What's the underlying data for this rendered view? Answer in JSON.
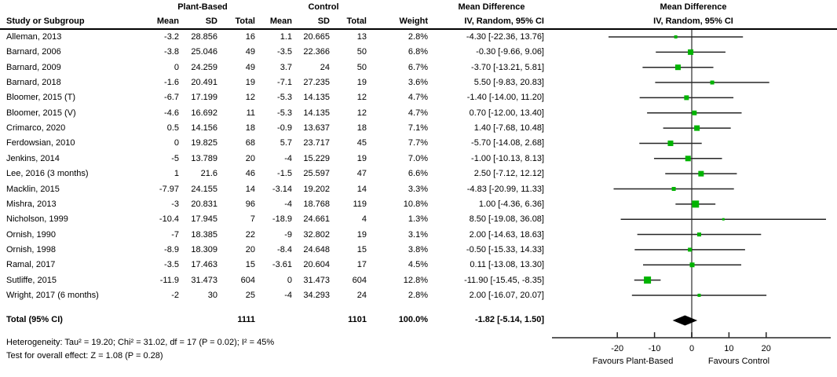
{
  "header": {
    "group1": "Plant-Based",
    "group2": "Control",
    "md_table": "Mean Difference",
    "md_plot": "Mean Difference",
    "iv_table": "IV, Random, 95% CI",
    "iv_plot": "IV, Random, 95% CI",
    "study": "Study or Subgroup",
    "mean": "Mean",
    "sd": "SD",
    "total": "Total",
    "weight": "Weight"
  },
  "chart_data": {
    "type": "forest",
    "title": "Mean Difference, IV, Random, 95% CI",
    "studies": [
      {
        "name": "Alleman, 2013",
        "pb_mean": "-3.2",
        "pb_sd": "28.856",
        "pb_total": "16",
        "c_mean": "1.1",
        "c_sd": "20.665",
        "c_total": "13",
        "weight": "2.8%",
        "ci_text": "-4.30 [-22.36, 13.76]",
        "md": -4.3,
        "lo": -22.36,
        "hi": 13.76,
        "w": 2.8
      },
      {
        "name": "Barnard, 2006",
        "pb_mean": "-3.8",
        "pb_sd": "25.046",
        "pb_total": "49",
        "c_mean": "-3.5",
        "c_sd": "22.366",
        "c_total": "50",
        "weight": "6.8%",
        "ci_text": "-0.30 [-9.66, 9.06]",
        "md": -0.3,
        "lo": -9.66,
        "hi": 9.06,
        "w": 6.8
      },
      {
        "name": "Barnard, 2009",
        "pb_mean": "0",
        "pb_sd": "24.259",
        "pb_total": "49",
        "c_mean": "3.7",
        "c_sd": "24",
        "c_total": "50",
        "weight": "6.7%",
        "ci_text": "-3.70 [-13.21, 5.81]",
        "md": -3.7,
        "lo": -13.21,
        "hi": 5.81,
        "w": 6.7
      },
      {
        "name": "Barnard, 2018",
        "pb_mean": "-1.6",
        "pb_sd": "20.491",
        "pb_total": "19",
        "c_mean": "-7.1",
        "c_sd": "27.235",
        "c_total": "19",
        "weight": "3.6%",
        "ci_text": "5.50 [-9.83, 20.83]",
        "md": 5.5,
        "lo": -9.83,
        "hi": 20.83,
        "w": 3.6
      },
      {
        "name": "Bloomer, 2015 (T)",
        "pb_mean": "-6.7",
        "pb_sd": "17.199",
        "pb_total": "12",
        "c_mean": "-5.3",
        "c_sd": "14.135",
        "c_total": "12",
        "weight": "4.7%",
        "ci_text": "-1.40 [-14.00, 11.20]",
        "md": -1.4,
        "lo": -14.0,
        "hi": 11.2,
        "w": 4.7
      },
      {
        "name": "Bloomer, 2015 (V)",
        "pb_mean": "-4.6",
        "pb_sd": "16.692",
        "pb_total": "11",
        "c_mean": "-5.3",
        "c_sd": "14.135",
        "c_total": "12",
        "weight": "4.7%",
        "ci_text": "0.70 [-12.00, 13.40]",
        "md": 0.7,
        "lo": -12.0,
        "hi": 13.4,
        "w": 4.7
      },
      {
        "name": "Crimarco, 2020",
        "pb_mean": "0.5",
        "pb_sd": "14.156",
        "pb_total": "18",
        "c_mean": "-0.9",
        "c_sd": "13.637",
        "c_total": "18",
        "weight": "7.1%",
        "ci_text": "1.40 [-7.68, 10.48]",
        "md": 1.4,
        "lo": -7.68,
        "hi": 10.48,
        "w": 7.1
      },
      {
        "name": "Ferdowsian, 2010",
        "pb_mean": "0",
        "pb_sd": "19.825",
        "pb_total": "68",
        "c_mean": "5.7",
        "c_sd": "23.717",
        "c_total": "45",
        "weight": "7.7%",
        "ci_text": "-5.70 [-14.08, 2.68]",
        "md": -5.7,
        "lo": -14.08,
        "hi": 2.68,
        "w": 7.7
      },
      {
        "name": "Jenkins, 2014",
        "pb_mean": "-5",
        "pb_sd": "13.789",
        "pb_total": "20",
        "c_mean": "-4",
        "c_sd": "15.229",
        "c_total": "19",
        "weight": "7.0%",
        "ci_text": "-1.00 [-10.13, 8.13]",
        "md": -1.0,
        "lo": -10.13,
        "hi": 8.13,
        "w": 7.0
      },
      {
        "name": "Lee, 2016 (3 months)",
        "pb_mean": "1",
        "pb_sd": "21.6",
        "pb_total": "46",
        "c_mean": "-1.5",
        "c_sd": "25.597",
        "c_total": "47",
        "weight": "6.6%",
        "ci_text": "2.50 [-7.12, 12.12]",
        "md": 2.5,
        "lo": -7.12,
        "hi": 12.12,
        "w": 6.6
      },
      {
        "name": "Macklin, 2015",
        "pb_mean": "-7.97",
        "pb_sd": "24.155",
        "pb_total": "14",
        "c_mean": "-3.14",
        "c_sd": "19.202",
        "c_total": "14",
        "weight": "3.3%",
        "ci_text": "-4.83 [-20.99, 11.33]",
        "md": -4.83,
        "lo": -20.99,
        "hi": 11.33,
        "w": 3.3
      },
      {
        "name": "Mishra, 2013",
        "pb_mean": "-3",
        "pb_sd": "20.831",
        "pb_total": "96",
        "c_mean": "-4",
        "c_sd": "18.768",
        "c_total": "119",
        "weight": "10.8%",
        "ci_text": "1.00 [-4.36, 6.36]",
        "md": 1.0,
        "lo": -4.36,
        "hi": 6.36,
        "w": 10.8
      },
      {
        "name": "Nicholson, 1999",
        "pb_mean": "-10.4",
        "pb_sd": "17.945",
        "pb_total": "7",
        "c_mean": "-18.9",
        "c_sd": "24.661",
        "c_total": "4",
        "weight": "1.3%",
        "ci_text": "8.50 [-19.08, 36.08]",
        "md": 8.5,
        "lo": -19.08,
        "hi": 36.08,
        "w": 1.3
      },
      {
        "name": "Ornish, 1990",
        "pb_mean": "-7",
        "pb_sd": "18.385",
        "pb_total": "22",
        "c_mean": "-9",
        "c_sd": "32.802",
        "c_total": "19",
        "weight": "3.1%",
        "ci_text": "2.00 [-14.63, 18.63]",
        "md": 2.0,
        "lo": -14.63,
        "hi": 18.63,
        "w": 3.1
      },
      {
        "name": "Ornish, 1998",
        "pb_mean": "-8.9",
        "pb_sd": "18.309",
        "pb_total": "20",
        "c_mean": "-8.4",
        "c_sd": "24.648",
        "c_total": "15",
        "weight": "3.8%",
        "ci_text": "-0.50 [-15.33, 14.33]",
        "md": -0.5,
        "lo": -15.33,
        "hi": 14.33,
        "w": 3.8
      },
      {
        "name": "Ramal, 2017",
        "pb_mean": "-3.5",
        "pb_sd": "17.463",
        "pb_total": "15",
        "c_mean": "-3.61",
        "c_sd": "20.604",
        "c_total": "17",
        "weight": "4.5%",
        "ci_text": "0.11 [-13.08, 13.30]",
        "md": 0.11,
        "lo": -13.08,
        "hi": 13.3,
        "w": 4.5
      },
      {
        "name": "Sutliffe, 2015",
        "pb_mean": "-11.9",
        "pb_sd": "31.473",
        "pb_total": "604",
        "c_mean": "0",
        "c_sd": "31.473",
        "c_total": "604",
        "weight": "12.8%",
        "ci_text": "-11.90 [-15.45, -8.35]",
        "md": -11.9,
        "lo": -15.45,
        "hi": -8.35,
        "w": 12.8
      },
      {
        "name": "Wright, 2017 (6 months)",
        "pb_mean": "-2",
        "pb_sd": "30",
        "pb_total": "25",
        "c_mean": "-4",
        "c_sd": "34.293",
        "c_total": "24",
        "weight": "2.8%",
        "ci_text": "2.00 [-16.07, 20.07]",
        "md": 2.0,
        "lo": -16.07,
        "hi": 20.07,
        "w": 2.8
      }
    ],
    "total": {
      "label": "Total (95% CI)",
      "pb_total": "1111",
      "c_total": "1101",
      "weight": "100.0%",
      "ci_text": "-1.82 [-5.14, 1.50]",
      "md": -1.82,
      "lo": -5.14,
      "hi": 1.5
    },
    "axis": {
      "ticks": [
        -20,
        -10,
        0,
        10,
        20
      ],
      "range": [
        -25,
        25
      ],
      "favours_left": "Favours Plant-Based",
      "favours_right": "Favours Control"
    }
  },
  "footer": {
    "heterogeneity": "Heterogeneity: Tau² = 19.20; Chi² = 31.02, df = 17 (P = 0.02); I² = 45%",
    "overall": "Test for overall effect: Z = 1.08 (P = 0.28)"
  },
  "colors": {
    "marker": "#00b300",
    "diamond": "#000000",
    "ci_line": "#262626",
    "zero_line": "#808080",
    "axis_line": "#262626"
  }
}
